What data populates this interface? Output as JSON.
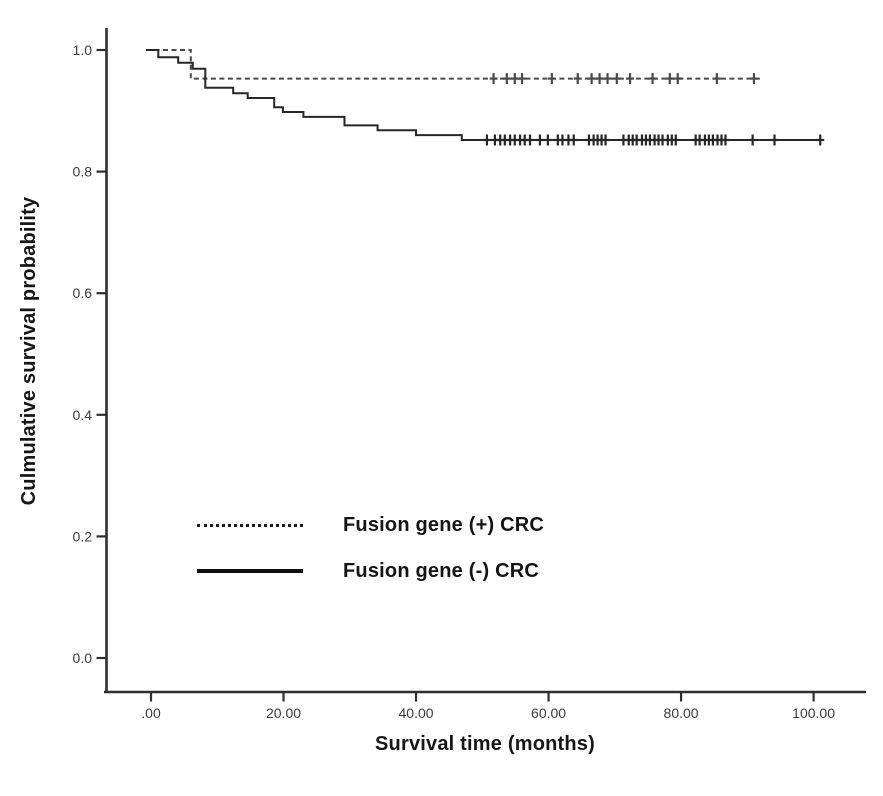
{
  "chart_data": {
    "type": "line",
    "subtype": "kaplan-meier-step",
    "title": "",
    "xlabel": "Survival time (months)",
    "ylabel": "Culmulative survival probability",
    "xlim": [
      -1,
      108
    ],
    "ylim": [
      0.0,
      1.04
    ],
    "grid": false,
    "legend_position": "inside-left-middle",
    "x_ticks": [
      0,
      20,
      40,
      60,
      80,
      100
    ],
    "x_tick_labels": [
      ".00",
      "20.00",
      "40.00",
      "60.00",
      "80.00",
      "100.00"
    ],
    "y_ticks": [
      1.0,
      0.8,
      0.6,
      0.4,
      0.2,
      0.0
    ],
    "y_tick_labels": [
      "1.0",
      "0.8",
      "0.6",
      "0.4",
      "0.2",
      "0.0"
    ],
    "axis_color": "#2e2e2e",
    "series": [
      {
        "name": "Fusion gene (+) CRC",
        "line_style": "dashed",
        "color": "#4a4a4a",
        "steps": [
          [
            0,
            1.0
          ],
          [
            6.0,
            0.953
          ]
        ],
        "end_month": 92.0,
        "censor_value": 0.953,
        "censor_months": [
          51.7,
          53.7,
          54.9,
          56.0,
          60.5,
          64.4,
          66.5,
          67.7,
          68.9,
          70.3,
          72.3,
          75.7,
          78.3,
          79.5,
          85.4,
          91.0
        ]
      },
      {
        "name": "Fusion gene (-) CRC",
        "line_style": "solid",
        "color": "#262626",
        "steps": [
          [
            0,
            1.0
          ],
          [
            1.1,
            0.988
          ],
          [
            4.1,
            0.979
          ],
          [
            6.3,
            0.969
          ],
          [
            8.2,
            0.938
          ],
          [
            12.4,
            0.929
          ],
          [
            14.6,
            0.921
          ],
          [
            18.6,
            0.906
          ],
          [
            19.9,
            0.898
          ],
          [
            23.0,
            0.89
          ],
          [
            29.2,
            0.876
          ],
          [
            34.2,
            0.868
          ],
          [
            40.0,
            0.86
          ],
          [
            46.9,
            0.852
          ]
        ],
        "end_month": 101.3,
        "censor_value": 0.852,
        "censor_months": [
          50.7,
          51.9,
          52.7,
          53.4,
          54.2,
          54.9,
          55.7,
          56.4,
          57.2,
          58.7,
          59.9,
          61.4,
          62.1,
          63.0,
          63.8,
          66.1,
          66.8,
          67.4,
          68.0,
          68.6,
          71.3,
          72.1,
          72.7,
          73.3,
          74.1,
          74.7,
          75.3,
          76.0,
          76.6,
          77.2,
          78.0,
          78.6,
          79.2,
          82.2,
          82.8,
          83.6,
          84.2,
          84.8,
          85.5,
          86.1,
          86.7,
          90.8,
          94.1,
          101.0
        ]
      }
    ]
  }
}
